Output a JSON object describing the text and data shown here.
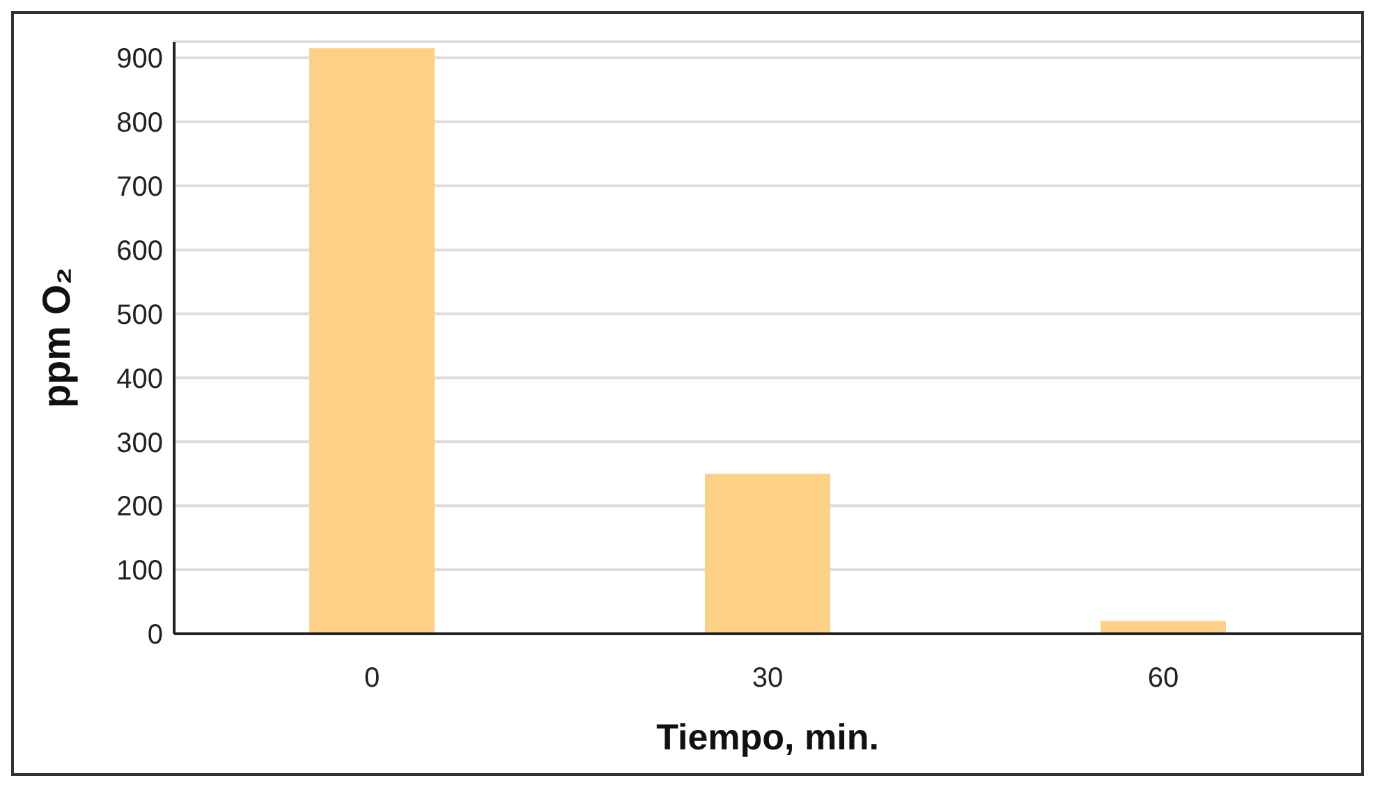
{
  "chart_data": {
    "type": "bar",
    "xlabel": "Tiempo, min.",
    "ylabel": "ppm O₂",
    "categories": [
      "0",
      "30",
      "60"
    ],
    "values": [
      915,
      250,
      20
    ],
    "color": "#fdd087",
    "ylim": [
      0,
      925
    ],
    "yticks": [
      0,
      100,
      200,
      300,
      400,
      500,
      600,
      700,
      800,
      900
    ],
    "grid": "y"
  }
}
